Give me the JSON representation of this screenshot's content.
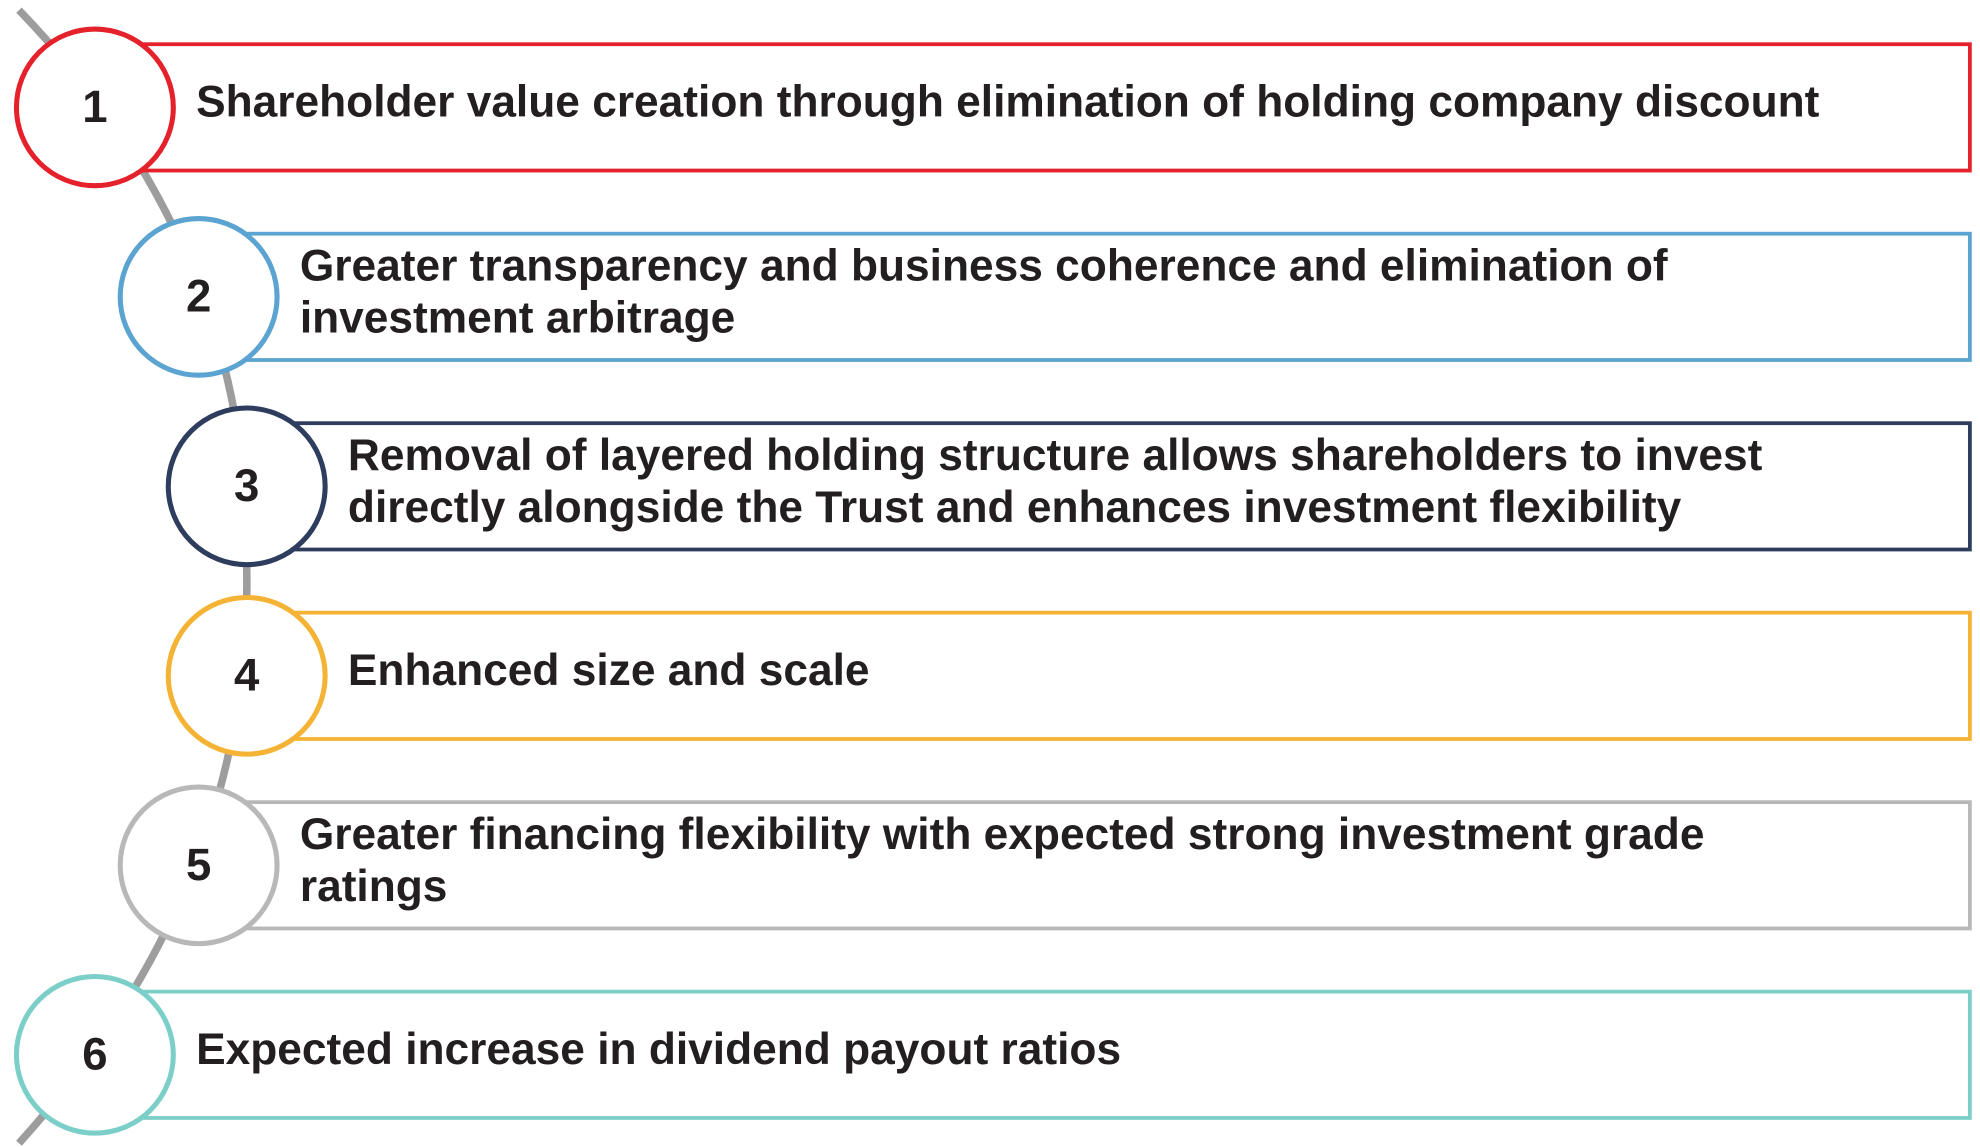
{
  "items": [
    {
      "number": "1",
      "lines": [
        "Shareholder value creation through elimination of holding company discount"
      ]
    },
    {
      "number": "2",
      "lines": [
        "Greater transparency and business coherence and elimination of",
        "investment arbitrage"
      ]
    },
    {
      "number": "3",
      "lines": [
        "Removal of layered holding structure allows shareholders to invest",
        "directly alongside the Trust and enhances investment flexibility"
      ]
    },
    {
      "number": "4",
      "lines": [
        "Enhanced size and scale"
      ]
    },
    {
      "number": "5",
      "lines": [
        "Greater financing flexibility with expected strong investment grade",
        "ratings"
      ]
    },
    {
      "number": "6",
      "lines": [
        "Expected increase in dividend payout ratios"
      ]
    }
  ]
}
